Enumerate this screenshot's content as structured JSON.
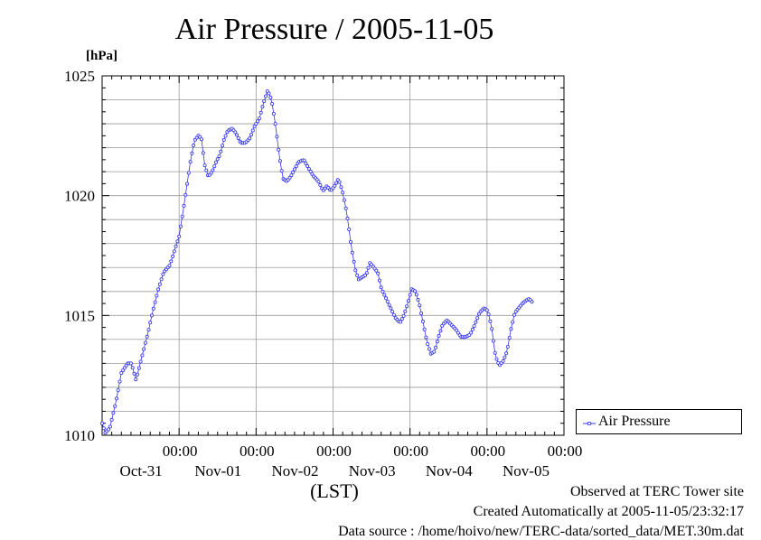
{
  "page": {
    "title": "Air Pressure / 2005-11-05",
    "unit_label": "[hPa]",
    "x_axis_label": "(LST)",
    "footer": {
      "observed": "Observed at TERC Tower site",
      "created": "Created Automatically at 2005-11-05/23:32:17",
      "source": "Data source : /home/hoivo/new/TERC-data/sorted_data/MET.30m.dat"
    },
    "legend": {
      "label": "Air Pressure"
    }
  },
  "colors": {
    "series": "#3333ee",
    "grid": "#9a9a9a",
    "axis": "#000000"
  },
  "chart_data": {
    "type": "line",
    "title": "Air Pressure / 2005-11-05",
    "ylabel": "[hPa]",
    "xlabel": "(LST)",
    "ylim": [
      1010,
      1025
    ],
    "xlim_days": [
      0,
      6
    ],
    "grid": true,
    "legend_position": "right",
    "y_ticks": [
      "1010",
      "1015",
      "1020",
      "1025"
    ],
    "x_ticks": [
      {
        "day": 1,
        "time": "00:00",
        "date": "Oct-31"
      },
      {
        "day": 2,
        "time": "00:00",
        "date": "Nov-01"
      },
      {
        "day": 3,
        "time": "00:00",
        "date": "Nov-02"
      },
      {
        "day": 4,
        "time": "00:00",
        "date": "Nov-03"
      },
      {
        "day": 5,
        "time": "00:00",
        "date": "Nov-04"
      },
      {
        "day": 6,
        "time": "00:00",
        "date": "Nov-05"
      }
    ],
    "series": [
      {
        "name": "Air Pressure",
        "day_points": [
          [
            0.0,
            1010.5
          ],
          [
            0.04,
            1010.1
          ],
          [
            0.1,
            1010.3
          ],
          [
            0.18,
            1011.4
          ],
          [
            0.25,
            1012.6
          ],
          [
            0.33,
            1013.0
          ],
          [
            0.38,
            1013.0
          ],
          [
            0.44,
            1012.3
          ],
          [
            0.51,
            1013.2
          ],
          [
            0.59,
            1014.2
          ],
          [
            0.66,
            1015.2
          ],
          [
            0.73,
            1016.1
          ],
          [
            0.8,
            1016.8
          ],
          [
            0.88,
            1017.1
          ],
          [
            0.95,
            1017.8
          ],
          [
            1.0,
            1018.3
          ],
          [
            1.05,
            1019.3
          ],
          [
            1.1,
            1020.4
          ],
          [
            1.15,
            1021.5
          ],
          [
            1.2,
            1022.3
          ],
          [
            1.25,
            1022.5
          ],
          [
            1.29,
            1022.4
          ],
          [
            1.33,
            1021.3
          ],
          [
            1.38,
            1020.8
          ],
          [
            1.43,
            1021.0
          ],
          [
            1.48,
            1021.4
          ],
          [
            1.53,
            1021.7
          ],
          [
            1.58,
            1022.3
          ],
          [
            1.63,
            1022.7
          ],
          [
            1.69,
            1022.8
          ],
          [
            1.74,
            1022.6
          ],
          [
            1.8,
            1022.2
          ],
          [
            1.86,
            1022.2
          ],
          [
            1.92,
            1022.4
          ],
          [
            1.98,
            1022.9
          ],
          [
            2.04,
            1023.2
          ],
          [
            2.1,
            1023.9
          ],
          [
            2.15,
            1024.4
          ],
          [
            2.2,
            1024.0
          ],
          [
            2.25,
            1023.0
          ],
          [
            2.3,
            1021.7
          ],
          [
            2.35,
            1020.7
          ],
          [
            2.4,
            1020.6
          ],
          [
            2.45,
            1020.8
          ],
          [
            2.5,
            1021.1
          ],
          [
            2.55,
            1021.4
          ],
          [
            2.62,
            1021.5
          ],
          [
            2.69,
            1021.1
          ],
          [
            2.75,
            1020.8
          ],
          [
            2.81,
            1020.6
          ],
          [
            2.87,
            1020.2
          ],
          [
            2.92,
            1020.4
          ],
          [
            2.97,
            1020.2
          ],
          [
            3.02,
            1020.4
          ],
          [
            3.07,
            1020.7
          ],
          [
            3.12,
            1020.2
          ],
          [
            3.16,
            1019.6
          ],
          [
            3.2,
            1018.8
          ],
          [
            3.24,
            1017.8
          ],
          [
            3.29,
            1016.9
          ],
          [
            3.33,
            1016.5
          ],
          [
            3.38,
            1016.6
          ],
          [
            3.43,
            1016.7
          ],
          [
            3.48,
            1017.2
          ],
          [
            3.53,
            1017.0
          ],
          [
            3.58,
            1016.8
          ],
          [
            3.63,
            1016.1
          ],
          [
            3.69,
            1015.7
          ],
          [
            3.75,
            1015.3
          ],
          [
            3.81,
            1014.9
          ],
          [
            3.87,
            1014.7
          ],
          [
            3.92,
            1015.0
          ],
          [
            3.97,
            1015.5
          ],
          [
            4.02,
            1016.1
          ],
          [
            4.07,
            1016.0
          ],
          [
            4.12,
            1015.5
          ],
          [
            4.17,
            1014.7
          ],
          [
            4.22,
            1013.9
          ],
          [
            4.27,
            1013.4
          ],
          [
            4.32,
            1013.5
          ],
          [
            4.37,
            1014.1
          ],
          [
            4.42,
            1014.6
          ],
          [
            4.48,
            1014.8
          ],
          [
            4.54,
            1014.6
          ],
          [
            4.6,
            1014.4
          ],
          [
            4.66,
            1014.1
          ],
          [
            4.72,
            1014.1
          ],
          [
            4.78,
            1014.2
          ],
          [
            4.84,
            1014.6
          ],
          [
            4.9,
            1015.1
          ],
          [
            4.96,
            1015.3
          ],
          [
            5.01,
            1015.2
          ],
          [
            5.06,
            1014.5
          ],
          [
            5.11,
            1013.3
          ],
          [
            5.16,
            1012.9
          ],
          [
            5.21,
            1013.1
          ],
          [
            5.26,
            1013.5
          ],
          [
            5.31,
            1014.4
          ],
          [
            5.36,
            1015.1
          ],
          [
            5.41,
            1015.3
          ],
          [
            5.46,
            1015.5
          ],
          [
            5.5,
            1015.6
          ],
          [
            5.55,
            1015.7
          ],
          [
            5.6,
            1015.5
          ]
        ]
      }
    ]
  }
}
